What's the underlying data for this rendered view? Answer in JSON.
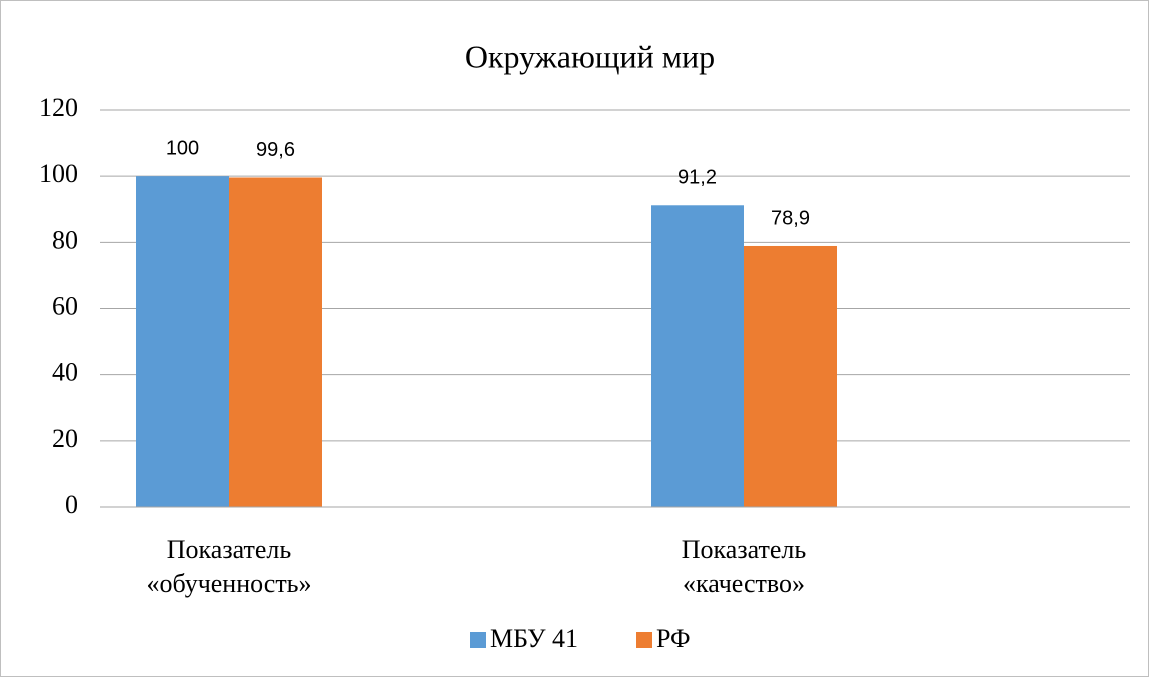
{
  "chart_data": {
    "type": "bar",
    "title": "Окружающий мир",
    "categories": [
      "Показатель «обученность»",
      "Показатель «качество»"
    ],
    "series": [
      {
        "name": "МБУ 41",
        "color": "#5b9bd5",
        "values": [
          100,
          91.2
        ],
        "value_labels": [
          "100",
          "91,2"
        ]
      },
      {
        "name": "РФ",
        "color": "#ed7d31",
        "values": [
          99.6,
          78.9
        ],
        "value_labels": [
          "99,6",
          "78,9"
        ]
      }
    ],
    "ylim": [
      0,
      120
    ],
    "yticks": [
      0,
      20,
      40,
      60,
      80,
      100,
      120
    ],
    "grid": true,
    "legend": "bottom"
  }
}
